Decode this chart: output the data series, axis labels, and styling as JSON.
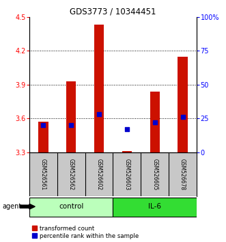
{
  "title": "GDS3773 / 10344451",
  "samples": [
    "GSM526561",
    "GSM526562",
    "GSM526602",
    "GSM526603",
    "GSM526605",
    "GSM526678"
  ],
  "red_values": [
    3.57,
    3.93,
    4.43,
    3.31,
    3.84,
    4.15
  ],
  "blue_values": [
    20,
    20,
    28,
    17,
    22,
    26
  ],
  "ylim_left": [
    3.3,
    4.5
  ],
  "ylim_right": [
    0,
    100
  ],
  "yticks_left": [
    3.3,
    3.6,
    3.9,
    4.2,
    4.5
  ],
  "yticks_right": [
    0,
    25,
    50,
    75,
    100
  ],
  "ytick_labels_right": [
    "0",
    "25",
    "50",
    "75",
    "100%"
  ],
  "bar_bottom": 3.3,
  "bar_color": "#cc1100",
  "dot_color": "#0000cc",
  "groups": [
    {
      "label": "control",
      "indices": [
        0,
        1,
        2
      ],
      "color": "#bbffbb"
    },
    {
      "label": "IL-6",
      "indices": [
        3,
        4,
        5
      ],
      "color": "#33dd33"
    }
  ],
  "agent_label": "agent",
  "legend_items": [
    {
      "color": "#cc1100",
      "label": "transformed count"
    },
    {
      "color": "#0000cc",
      "label": "percentile rank within the sample"
    }
  ],
  "background_color": "#ffffff",
  "plot_bg": "#ffffff",
  "bar_width": 0.35,
  "sample_bg": "#c8c8c8",
  "hgrid_dotted_at": [
    3.6,
    3.9,
    4.2
  ]
}
